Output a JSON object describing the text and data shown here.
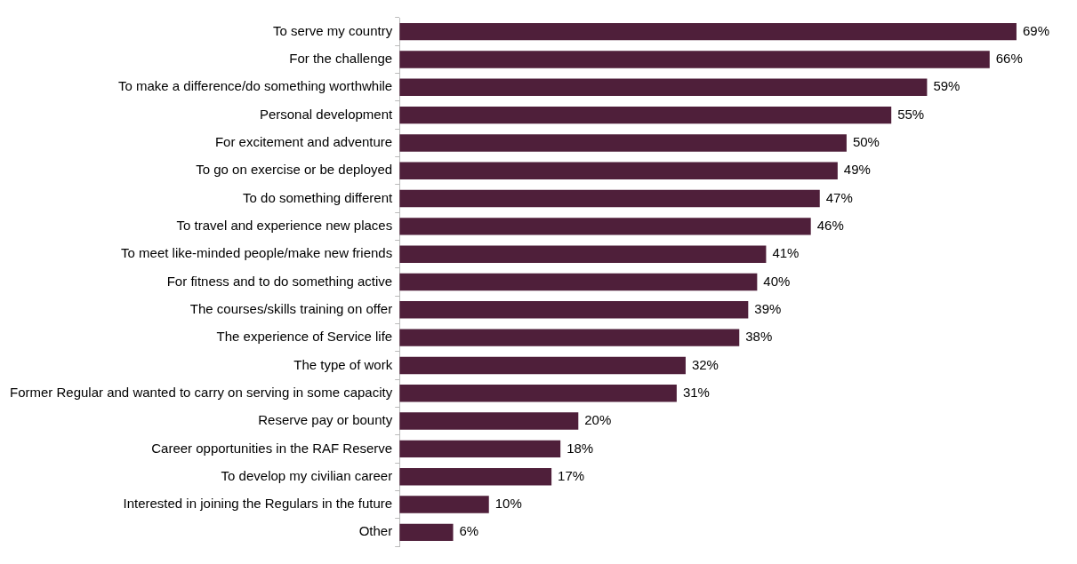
{
  "chart_data": {
    "type": "bar",
    "orientation": "horizontal",
    "categories": [
      "To serve my country",
      "For the challenge",
      "To make a difference/do something worthwhile",
      "Personal development",
      "For excitement and adventure",
      "To go on exercise or be deployed",
      "To do something different",
      "To travel and experience new places",
      "To meet like-minded people/make new friends",
      "For fitness and to do something active",
      "The courses/skills training on offer",
      "The experience of Service life",
      "The type of work",
      "Former Regular and wanted to carry on serving in some capacity",
      "Reserve pay or bounty",
      "Career opportunities in the RAF Reserve",
      "To develop my civilian career",
      "Interested in joining the Regulars in the future",
      "Other"
    ],
    "values": [
      69,
      66,
      59,
      55,
      50,
      49,
      47,
      46,
      41,
      40,
      39,
      38,
      32,
      31,
      20,
      18,
      17,
      10,
      6
    ],
    "value_labels": [
      "69%",
      "66%",
      "59%",
      "55%",
      "50%",
      "49%",
      "47%",
      "46%",
      "41%",
      "40%",
      "39%",
      "38%",
      "32%",
      "31%",
      "20%",
      "18%",
      "17%",
      "10%",
      "6%"
    ],
    "color": "#4f1f3a",
    "grid": false,
    "legend": false,
    "tick_labels": "y"
  }
}
